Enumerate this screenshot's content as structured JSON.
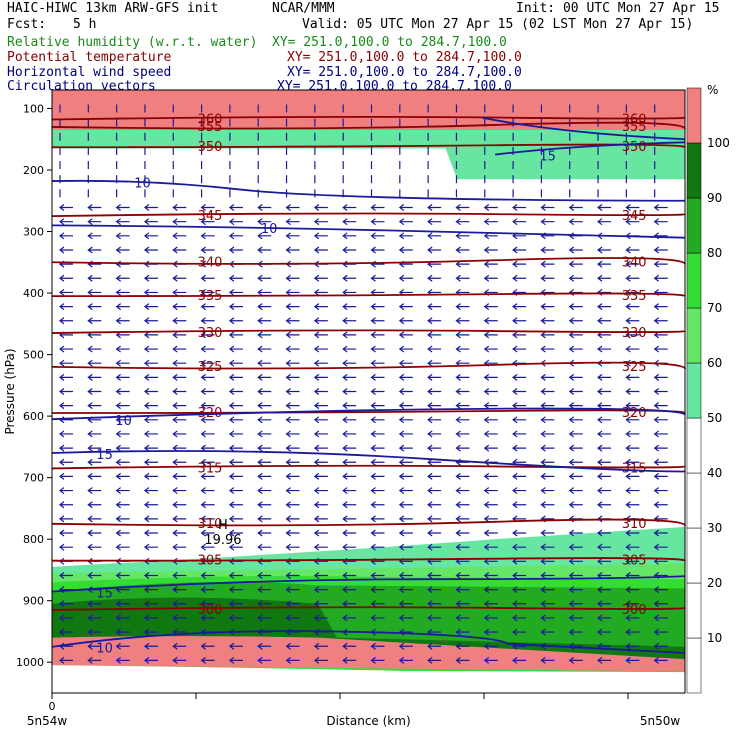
{
  "header": {
    "model": "HAIC-HIWC 13km ARW-GFS init",
    "org": "NCAR/MMM",
    "init": "Init: 00 UTC Mon 27 Apr 15",
    "fcst_label": "Fcst:",
    "fcst_value": "5 h",
    "valid": "Valid: 05 UTC Mon 27 Apr 15 (02 LST Mon 27 Apr 15)",
    "fields": [
      {
        "name": "Relative humidity (w.r.t. water)",
        "xy": "XY= 251.0,100.0 to 284.7,100.0",
        "color": "#1a8a1a"
      },
      {
        "name": "Potential temperature",
        "xy": "XY= 251.0,100.0 to 284.7,100.0",
        "color": "#8b0000"
      },
      {
        "name": "Horizontal wind speed",
        "xy": "XY= 251.0,100.0 to 284.7,100.0",
        "color": "#000080"
      },
      {
        "name": "Circulation vectors",
        "xy": "XY= 251.0,100.0 to 284.7,100.0",
        "color": "#000080"
      }
    ]
  },
  "chart_data": {
    "type": "cross-section",
    "xlabel": "Distance (km)",
    "ylabel": "Pressure (hPa)",
    "x_tick_labels": [
      "0"
    ],
    "x_end_labels": [
      "5n54w",
      "5n50w"
    ],
    "y_ticks": [
      100,
      200,
      300,
      400,
      500,
      600,
      700,
      800,
      900,
      1000
    ],
    "ylim": [
      1050,
      70
    ],
    "colorbar": {
      "unit": "%",
      "levels": [
        10,
        20,
        30,
        40,
        50,
        60,
        70,
        80,
        90,
        100
      ],
      "colors": [
        "#ffffff",
        "#ffffff",
        "#ffffff",
        "#ffffff",
        "#ffffff",
        "#66e6a0",
        "#66e666",
        "#33dd33",
        "#22aa22",
        "#117711",
        "#f08080"
      ]
    },
    "rh_regions": [
      {
        "level": 100,
        "pressure_top": 70,
        "pressure_bottom": 135
      },
      {
        "level": 50,
        "pressure_top": 135,
        "pressure_bottom": 180,
        "extends_to": 215,
        "note": "right side"
      },
      {
        "level": 50,
        "pressure_top": 790,
        "pressure_bottom": 830
      },
      {
        "level": 60,
        "pressure_top": 830,
        "pressure_bottom": 860
      },
      {
        "level": 70,
        "pressure_top": 860,
        "pressure_bottom": 880
      },
      {
        "level": 80,
        "pressure_top": 880,
        "pressure_bottom": 960
      },
      {
        "level": 90,
        "pressure_top": 895,
        "pressure_bottom": 1000
      }
    ],
    "theta_contours": [
      {
        "value": 300,
        "pressure": 915
      },
      {
        "value": 305,
        "pressure": 835
      },
      {
        "value": 310,
        "pressure": 775
      },
      {
        "value": 315,
        "pressure": 685
      },
      {
        "value": 320,
        "pressure": 595
      },
      {
        "value": 325,
        "pressure": 520
      },
      {
        "value": 330,
        "pressure": 465
      },
      {
        "value": 335,
        "pressure": 405
      },
      {
        "value": 340,
        "pressure": 350
      },
      {
        "value": 345,
        "pressure": 275
      },
      {
        "value": 350,
        "pressure": 163
      },
      {
        "value": 355,
        "pressure": 130
      },
      {
        "value": 360,
        "pressure": 118
      }
    ],
    "wind_contours": [
      {
        "value": 10,
        "label_positions": [
          "upper-left",
          "upper-mid"
        ]
      },
      {
        "value": 10,
        "pressure": 605
      },
      {
        "value": 15,
        "pressure": 660
      },
      {
        "value": 15,
        "pressure": 860
      },
      {
        "value": 10,
        "pressure": 960
      },
      {
        "value": 15,
        "pressure": 175
      }
    ],
    "annotations": [
      {
        "text": "H",
        "pressure": 775,
        "x_frac": 0.27
      },
      {
        "text": "19.96",
        "pressure": 800,
        "x_frac": 0.27
      }
    ]
  }
}
